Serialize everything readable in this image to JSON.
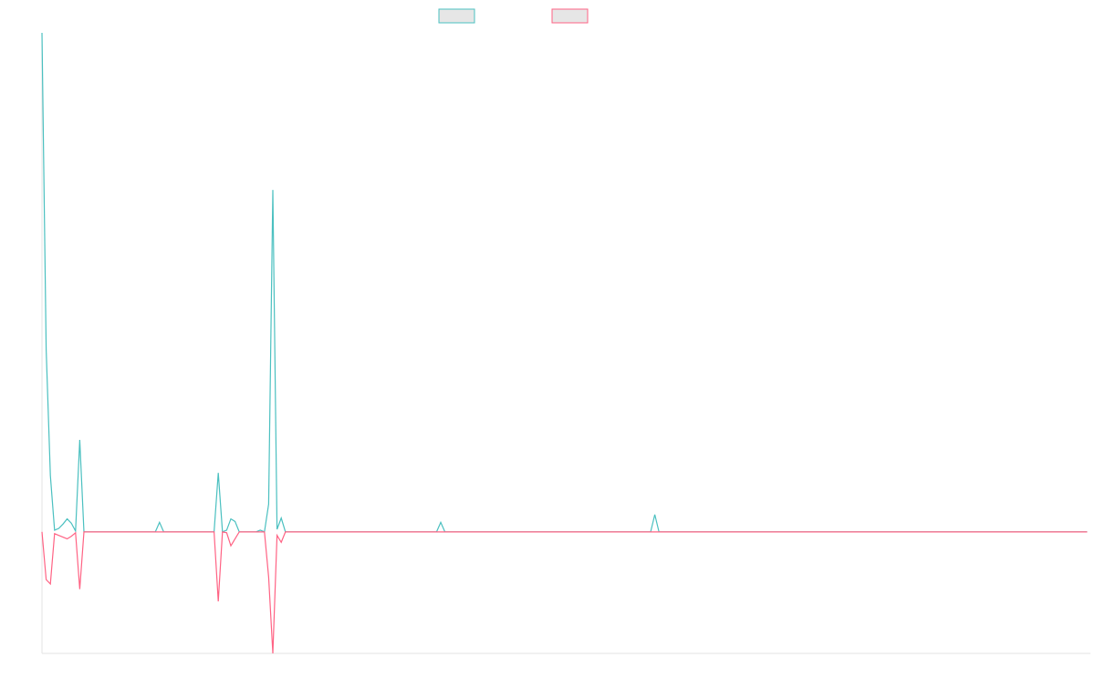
{
  "chart_data": {
    "type": "line",
    "title": "",
    "xlabel": "",
    "ylabel": "",
    "grid": false,
    "legend_position": "top-center",
    "ylim": [
      -140,
      575
    ],
    "x_count": 250,
    "series": [
      {
        "color": "#4bc0c0",
        "points": [
          [
            0,
            575
          ],
          [
            1,
            210
          ],
          [
            2,
            65
          ],
          [
            3,
            2
          ],
          [
            4,
            4
          ],
          [
            5,
            9
          ],
          [
            6,
            15
          ],
          [
            7,
            10
          ],
          [
            8,
            1
          ],
          [
            9,
            106
          ],
          [
            10,
            0
          ],
          [
            27,
            0
          ],
          [
            28,
            11
          ],
          [
            29,
            0
          ],
          [
            41,
            0
          ],
          [
            42,
            68
          ],
          [
            43,
            0
          ],
          [
            44,
            2
          ],
          [
            45,
            15
          ],
          [
            46,
            12
          ],
          [
            47,
            0
          ],
          [
            51,
            0
          ],
          [
            52,
            2
          ],
          [
            53,
            0
          ],
          [
            54,
            32
          ],
          [
            55,
            394
          ],
          [
            56,
            3
          ],
          [
            57,
            16
          ],
          [
            58,
            0
          ],
          [
            94,
            0
          ],
          [
            95,
            11
          ],
          [
            96,
            0
          ],
          [
            145,
            0
          ],
          [
            146,
            20
          ],
          [
            147,
            0
          ]
        ]
      },
      {
        "color": "#ff6384",
        "points": [
          [
            0,
            0
          ],
          [
            1,
            -55
          ],
          [
            2,
            -60
          ],
          [
            3,
            -2
          ],
          [
            4,
            -4
          ],
          [
            5,
            -6
          ],
          [
            6,
            -8
          ],
          [
            7,
            -5
          ],
          [
            8,
            -1
          ],
          [
            9,
            -66
          ],
          [
            10,
            0
          ],
          [
            41,
            0
          ],
          [
            42,
            -80
          ],
          [
            43,
            0
          ],
          [
            44,
            -1
          ],
          [
            45,
            -16
          ],
          [
            46,
            -8
          ],
          [
            47,
            0
          ],
          [
            53,
            0
          ],
          [
            54,
            -52
          ],
          [
            55,
            -140
          ],
          [
            56,
            -4
          ],
          [
            57,
            -12
          ],
          [
            58,
            0
          ]
        ]
      }
    ]
  }
}
